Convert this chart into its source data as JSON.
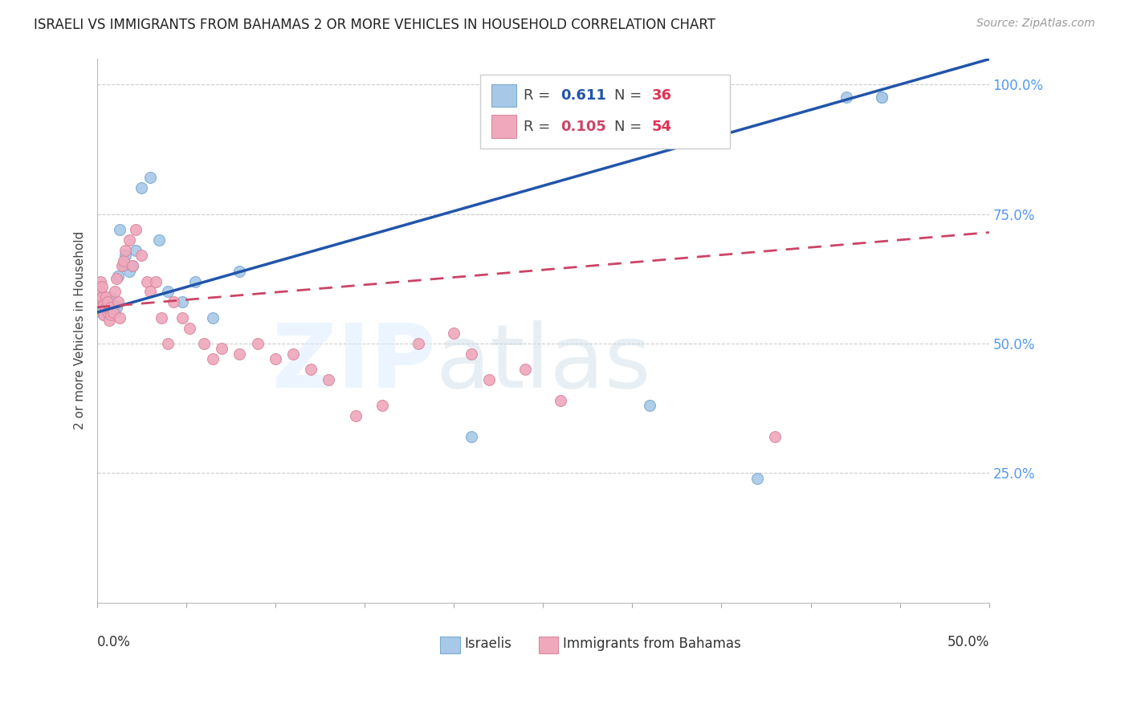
{
  "title": "ISRAELI VS IMMIGRANTS FROM BAHAMAS 2 OR MORE VEHICLES IN HOUSEHOLD CORRELATION CHART",
  "source": "Source: ZipAtlas.com",
  "ylabel": "2 or more Vehicles in Household",
  "israelis_color": "#a8c8e8",
  "israelis_edge": "#7aaad0",
  "bahamas_color": "#f0a8bc",
  "bahamas_edge": "#d888a0",
  "line1_color": "#2255aa",
  "line2_color": "#cc4466",
  "xlim": [
    0,
    0.5
  ],
  "ylim": [
    0,
    1.05
  ],
  "israelis_x": [
    0.001,
    0.002,
    0.002,
    0.003,
    0.003,
    0.004,
    0.005,
    0.006,
    0.007,
    0.008,
    0.008,
    0.009,
    0.01,
    0.01,
    0.011,
    0.012,
    0.013,
    0.015,
    0.016,
    0.018,
    0.02,
    0.022,
    0.025,
    0.03,
    0.035,
    0.04,
    0.048,
    0.055,
    0.065,
    0.08,
    0.21,
    0.31,
    0.37,
    0.42,
    0.44,
    0.44
  ],
  "israelis_y": [
    0.575,
    0.585,
    0.595,
    0.575,
    0.56,
    0.555,
    0.57,
    0.58,
    0.56,
    0.57,
    0.59,
    0.565,
    0.575,
    0.56,
    0.57,
    0.63,
    0.72,
    0.65,
    0.67,
    0.64,
    0.65,
    0.68,
    0.8,
    0.82,
    0.7,
    0.6,
    0.58,
    0.62,
    0.55,
    0.64,
    0.32,
    0.38,
    0.24,
    0.975,
    0.975,
    0.975
  ],
  "bahamas_x": [
    0.001,
    0.001,
    0.002,
    0.002,
    0.003,
    0.003,
    0.004,
    0.004,
    0.005,
    0.005,
    0.006,
    0.006,
    0.007,
    0.007,
    0.008,
    0.008,
    0.009,
    0.01,
    0.011,
    0.012,
    0.013,
    0.014,
    0.015,
    0.016,
    0.018,
    0.02,
    0.022,
    0.025,
    0.028,
    0.03,
    0.033,
    0.036,
    0.04,
    0.043,
    0.048,
    0.052,
    0.06,
    0.065,
    0.07,
    0.08,
    0.09,
    0.1,
    0.11,
    0.12,
    0.13,
    0.145,
    0.16,
    0.18,
    0.2,
    0.22,
    0.24,
    0.26,
    0.21,
    0.38
  ],
  "bahamas_y": [
    0.59,
    0.61,
    0.6,
    0.62,
    0.59,
    0.61,
    0.555,
    0.575,
    0.57,
    0.59,
    0.56,
    0.58,
    0.545,
    0.565,
    0.555,
    0.57,
    0.56,
    0.6,
    0.625,
    0.58,
    0.55,
    0.65,
    0.66,
    0.68,
    0.7,
    0.65,
    0.72,
    0.67,
    0.62,
    0.6,
    0.62,
    0.55,
    0.5,
    0.58,
    0.55,
    0.53,
    0.5,
    0.47,
    0.49,
    0.48,
    0.5,
    0.47,
    0.48,
    0.45,
    0.43,
    0.36,
    0.38,
    0.5,
    0.52,
    0.43,
    0.45,
    0.39,
    0.48,
    0.32
  ]
}
